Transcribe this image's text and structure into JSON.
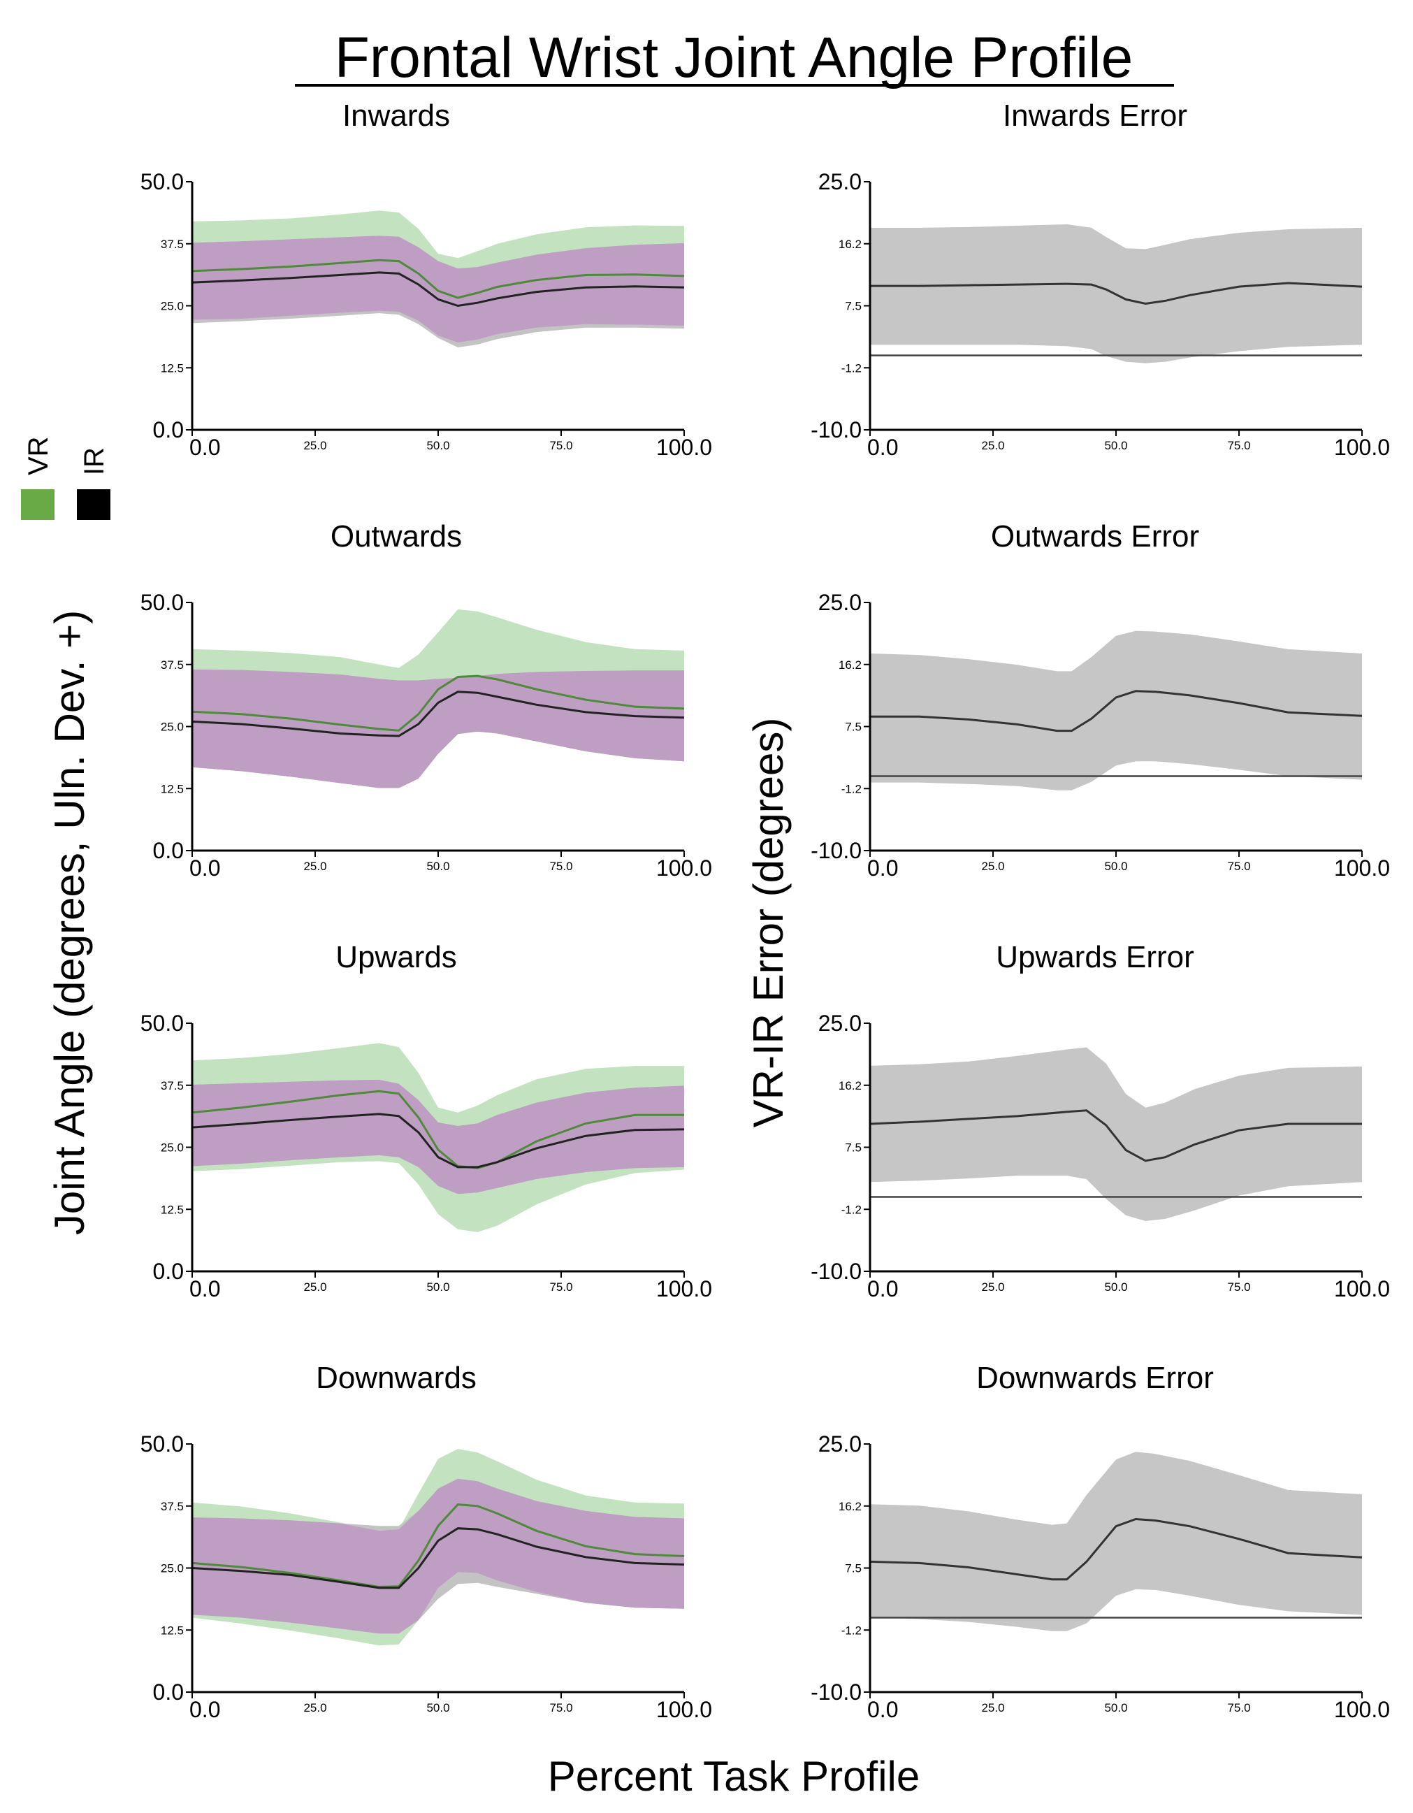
{
  "figure": {
    "title": "Frontal Wrist Joint Angle Profile",
    "xlabel": "Percent Task Profile",
    "ylabel_left": "Joint Angle (degrees, Uln. Dev. +)",
    "ylabel_right": "VR-IR Error (degrees)"
  },
  "legend": {
    "items": [
      {
        "label": "VR",
        "color": "#6aaa46"
      },
      {
        "label": "IR",
        "color": "#000000"
      }
    ]
  },
  "colors": {
    "vr_band": "#c3e2bf",
    "ir_band": "#c3c3c3",
    "overlap_band": "#be9ec3",
    "vr_line": "#4f8a3a",
    "ir_line": "#222222",
    "error_band": "#c6c6c6",
    "error_line": "#333333",
    "axis": "#000000"
  },
  "x_ticks": [
    "0.0",
    "25.0",
    "50.0",
    "75.0",
    "100.0"
  ],
  "angle_y_ticks": [
    "0.0",
    "12.5",
    "25.0",
    "37.5",
    "50.0"
  ],
  "error_y_ticks": [
    "-10.0",
    "-1.2",
    "7.5",
    "16.2",
    "25.0"
  ],
  "chart_data": [
    {
      "type": "area",
      "title": "Inwards",
      "xlim": [
        0,
        100
      ],
      "ylim": [
        0,
        50
      ],
      "x": [
        0,
        10,
        20,
        30,
        38,
        42,
        46,
        50,
        54,
        58,
        62,
        70,
        80,
        90,
        100
      ],
      "series": [
        {
          "name": "VR",
          "values": [
            32,
            32.4,
            32.9,
            33.6,
            34.2,
            34.0,
            31.5,
            28.0,
            26.6,
            27.6,
            28.8,
            30.2,
            31.2,
            31.3,
            31.0
          ]
        },
        {
          "name": "IR",
          "values": [
            29.7,
            30.1,
            30.6,
            31.2,
            31.7,
            31.5,
            29.3,
            26.3,
            25.0,
            25.6,
            26.5,
            27.8,
            28.7,
            28.9,
            28.7
          ]
        }
      ],
      "vr_band": {
        "upper": [
          42,
          42.2,
          42.6,
          43.4,
          44.2,
          43.8,
          40.5,
          35.5,
          34.6,
          36.0,
          37.5,
          39.4,
          40.8,
          41.2,
          41.1
        ],
        "lower": [
          22.2,
          22.4,
          23.0,
          23.6,
          24.0,
          23.8,
          22.0,
          19.0,
          17.6,
          18.2,
          19.3,
          20.6,
          21.3,
          21.2,
          21.0
        ]
      },
      "ir_band": {
        "upper": [
          37.7,
          38.0,
          38.4,
          38.8,
          39.1,
          38.9,
          36.8,
          34.0,
          32.5,
          32.8,
          33.7,
          35.3,
          36.6,
          37.3,
          37.6
        ],
        "lower": [
          21.5,
          21.9,
          22.4,
          23.0,
          23.5,
          23.2,
          21.3,
          18.5,
          16.6,
          17.2,
          18.3,
          19.7,
          20.6,
          20.6,
          20.4
        ]
      }
    },
    {
      "type": "area",
      "title": "Inwards Error",
      "xlim": [
        0,
        100
      ],
      "ylim": [
        -10,
        25
      ],
      "x": [
        0,
        10,
        20,
        30,
        40,
        45,
        48,
        52,
        56,
        60,
        65,
        75,
        85,
        100
      ],
      "series": [
        {
          "name": "Error",
          "values": [
            10.3,
            10.3,
            10.4,
            10.5,
            10.6,
            10.5,
            9.8,
            8.4,
            7.8,
            8.2,
            9.0,
            10.2,
            10.7,
            10.2
          ]
        }
      ],
      "error_band": {
        "upper": [
          18.5,
          18.5,
          18.6,
          18.8,
          19.0,
          18.5,
          17.2,
          15.6,
          15.5,
          16.1,
          16.9,
          17.8,
          18.3,
          18.5
        ],
        "lower": [
          2.0,
          2.0,
          2.0,
          2.0,
          1.8,
          1.4,
          0.4,
          -0.4,
          -0.6,
          -0.4,
          0.2,
          1.1,
          1.7,
          2.0
        ]
      },
      "reference_line": 0.5
    },
    {
      "type": "area",
      "title": "Outwards",
      "xlim": [
        0,
        100
      ],
      "ylim": [
        0,
        50
      ],
      "x": [
        0,
        10,
        20,
        30,
        38,
        42,
        46,
        50,
        54,
        58,
        62,
        70,
        80,
        90,
        100
      ],
      "series": [
        {
          "name": "VR",
          "values": [
            28.0,
            27.5,
            26.6,
            25.4,
            24.5,
            24.2,
            27.5,
            32.5,
            35.0,
            35.2,
            34.5,
            32.5,
            30.4,
            29.0,
            28.6
          ]
        },
        {
          "name": "IR",
          "values": [
            26.0,
            25.5,
            24.6,
            23.6,
            23.2,
            23.1,
            25.5,
            29.8,
            32.0,
            31.8,
            31.0,
            29.4,
            27.9,
            27.1,
            26.8
          ]
        }
      ],
      "vr_band": {
        "upper": [
          40.6,
          40.3,
          39.8,
          39.0,
          37.5,
          36.8,
          39.5,
          44.0,
          48.6,
          48.2,
          47.0,
          44.5,
          42.0,
          40.6,
          40.3
        ]
      },
      "ir_band": {
        "upper": [
          36.5,
          36.4,
          36.0,
          35.5,
          34.6,
          34.3,
          34.3,
          34.6,
          34.8,
          35.2,
          35.6,
          36.0,
          36.2,
          36.3,
          36.3
        ],
        "lower": [
          16.8,
          16.0,
          14.9,
          13.6,
          12.6,
          12.6,
          14.5,
          19.5,
          23.5,
          24.0,
          23.6,
          22.0,
          20.0,
          18.6,
          18.0
        ]
      }
    },
    {
      "type": "area",
      "title": "Outwards Error",
      "xlim": [
        0,
        100
      ],
      "ylim": [
        -10,
        25
      ],
      "x": [
        0,
        10,
        20,
        30,
        38,
        41,
        45,
        50,
        54,
        58,
        65,
        75,
        85,
        100
      ],
      "series": [
        {
          "name": "Error",
          "values": [
            8.9,
            8.9,
            8.5,
            7.8,
            6.9,
            6.9,
            8.6,
            11.6,
            12.5,
            12.4,
            11.9,
            10.8,
            9.5,
            9.0
          ]
        }
      ],
      "error_band": {
        "upper": [
          17.8,
          17.6,
          17.0,
          16.2,
          15.3,
          15.3,
          17.3,
          20.3,
          21.0,
          20.9,
          20.5,
          19.5,
          18.4,
          17.8
        ],
        "lower": [
          -0.4,
          -0.4,
          -0.6,
          -0.9,
          -1.5,
          -1.5,
          -0.3,
          2.0,
          2.6,
          2.6,
          2.2,
          1.4,
          0.5,
          0.0
        ]
      },
      "reference_line": 0.5
    },
    {
      "type": "area",
      "title": "Upwards",
      "xlim": [
        0,
        100
      ],
      "ylim": [
        0,
        50
      ],
      "x": [
        0,
        10,
        20,
        30,
        38,
        42,
        46,
        50,
        54,
        58,
        62,
        70,
        80,
        90,
        100
      ],
      "series": [
        {
          "name": "VR",
          "values": [
            32.0,
            33.0,
            34.2,
            35.5,
            36.3,
            35.8,
            31.0,
            24.5,
            21.2,
            20.8,
            22.0,
            26.2,
            29.8,
            31.5,
            31.5
          ]
        },
        {
          "name": "IR",
          "values": [
            29.0,
            29.7,
            30.5,
            31.2,
            31.7,
            31.3,
            28.0,
            23.0,
            21.0,
            21.0,
            22.0,
            24.8,
            27.3,
            28.5,
            28.6
          ]
        }
      ],
      "vr_band": {
        "upper": [
          42.5,
          43.0,
          43.8,
          45.0,
          46.0,
          45.2,
          40.0,
          33.0,
          32.0,
          33.4,
          35.5,
          38.7,
          40.8,
          41.4,
          41.4
        ],
        "lower": [
          20.2,
          20.6,
          21.3,
          22.0,
          22.2,
          21.8,
          17.5,
          11.5,
          8.5,
          7.9,
          9.2,
          13.5,
          17.5,
          19.8,
          20.5
        ]
      },
      "ir_band": {
        "upper": [
          37.6,
          37.9,
          38.2,
          38.5,
          38.6,
          37.8,
          34.5,
          30.0,
          29.3,
          29.8,
          31.5,
          34.0,
          36.0,
          37.0,
          37.4
        ],
        "lower": [
          21.2,
          21.7,
          22.4,
          23.0,
          23.4,
          23.0,
          21.0,
          17.2,
          15.6,
          15.9,
          16.8,
          18.6,
          20.0,
          20.8,
          21.0
        ]
      }
    },
    {
      "type": "area",
      "title": "Upwards Error",
      "xlim": [
        0,
        100
      ],
      "ylim": [
        -10,
        25
      ],
      "x": [
        0,
        10,
        20,
        30,
        40,
        44,
        48,
        52,
        56,
        60,
        66,
        75,
        85,
        100
      ],
      "series": [
        {
          "name": "Error",
          "values": [
            10.8,
            11.1,
            11.5,
            11.9,
            12.5,
            12.7,
            10.6,
            7.1,
            5.6,
            6.1,
            7.9,
            9.9,
            10.8,
            10.8
          ]
        }
      ],
      "error_band": {
        "upper": [
          19.0,
          19.2,
          19.6,
          20.4,
          21.3,
          21.6,
          19.3,
          15.0,
          13.1,
          13.8,
          15.7,
          17.6,
          18.7,
          18.9
        ],
        "lower": [
          2.6,
          2.8,
          3.1,
          3.5,
          3.5,
          3.0,
          0.2,
          -2.1,
          -2.9,
          -2.6,
          -1.4,
          0.7,
          2.0,
          2.6
        ]
      },
      "reference_line": 0.5
    },
    {
      "type": "area",
      "title": "Downwards",
      "xlim": [
        0,
        100
      ],
      "ylim": [
        0,
        50
      ],
      "x": [
        0,
        10,
        20,
        30,
        38,
        42,
        46,
        50,
        54,
        58,
        62,
        70,
        80,
        90,
        100
      ],
      "series": [
        {
          "name": "VR",
          "values": [
            26.0,
            25.2,
            24.0,
            22.5,
            21.2,
            21.3,
            26.5,
            33.5,
            37.8,
            37.5,
            36.0,
            32.5,
            29.4,
            27.8,
            27.4
          ]
        },
        {
          "name": "IR",
          "values": [
            25.0,
            24.4,
            23.6,
            22.2,
            21.0,
            21.0,
            25.0,
            30.5,
            33.0,
            32.8,
            31.8,
            29.3,
            27.2,
            26.0,
            25.7
          ]
        }
      ],
      "vr_band": {
        "upper": [
          38.2,
          37.4,
          36.0,
          34.2,
          32.5,
          32.8,
          40.0,
          47.0,
          49.0,
          48.3,
          46.5,
          42.8,
          39.6,
          38.2,
          38.0
        ],
        "lower": [
          15.0,
          13.8,
          12.4,
          10.8,
          9.4,
          9.6,
          14.5,
          21.0,
          24.2,
          24.0,
          22.5,
          20.2,
          18.0,
          17.0,
          16.8
        ]
      },
      "ir_band": {
        "upper": [
          35.2,
          35.0,
          34.6,
          34.0,
          33.5,
          33.5,
          36.5,
          41.0,
          43.0,
          42.5,
          41.0,
          38.5,
          36.5,
          35.3,
          35.0
        ],
        "lower": [
          15.6,
          15.0,
          14.0,
          12.8,
          11.8,
          11.8,
          14.5,
          18.8,
          21.8,
          22.0,
          21.2,
          19.8,
          18.0,
          17.0,
          16.8
        ]
      }
    },
    {
      "type": "area",
      "title": "Downwards Error",
      "xlim": [
        0,
        100
      ],
      "ylim": [
        -10,
        25
      ],
      "x": [
        0,
        10,
        20,
        30,
        37,
        40,
        44,
        50,
        54,
        58,
        65,
        75,
        85,
        100
      ],
      "series": [
        {
          "name": "Error",
          "values": [
            8.4,
            8.2,
            7.6,
            6.6,
            5.9,
            5.9,
            8.4,
            13.4,
            14.4,
            14.2,
            13.4,
            11.6,
            9.6,
            9.0
          ]
        }
      ],
      "error_band": {
        "upper": [
          16.5,
          16.3,
          15.5,
          14.3,
          13.6,
          13.8,
          17.8,
          22.8,
          23.9,
          23.6,
          22.6,
          20.6,
          18.5,
          17.9
        ],
        "lower": [
          0.5,
          0.3,
          -0.1,
          -0.8,
          -1.4,
          -1.4,
          -0.3,
          3.6,
          4.5,
          4.4,
          3.6,
          2.3,
          1.4,
          0.9
        ]
      },
      "reference_line": 0.5
    }
  ]
}
